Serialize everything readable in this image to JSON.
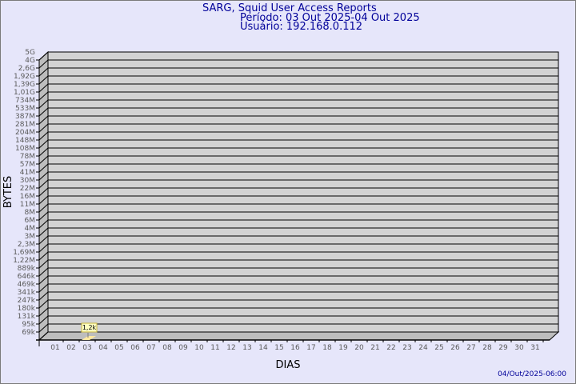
{
  "header": {
    "title": "SARG, Squid User Access Reports",
    "period": "Período: 03 Out 2025-04 Out 2025",
    "user": "Usuário: 192.168.0.112"
  },
  "footer": {
    "timestamp": "04/Out/2025-06:00"
  },
  "colors": {
    "background": "#e6e6fa",
    "plot": "#d3d3d3",
    "bar": "#ffe8a0",
    "text": "#000099"
  },
  "chart_data": {
    "type": "bar",
    "title": "SARG, Squid User Access Reports",
    "xlabel": "DIAS",
    "ylabel": "BYTES",
    "y_scale": "log",
    "grid": true,
    "categories": [
      "01",
      "02",
      "03",
      "04",
      "05",
      "06",
      "07",
      "08",
      "09",
      "10",
      "11",
      "12",
      "13",
      "14",
      "15",
      "16",
      "17",
      "18",
      "19",
      "20",
      "21",
      "22",
      "23",
      "24",
      "25",
      "26",
      "27",
      "28",
      "29",
      "30",
      "31"
    ],
    "y_ticks": [
      "5G",
      "4G",
      "2,6G",
      "1,92G",
      "1,39G",
      "1,01G",
      "734M",
      "533M",
      "387M",
      "281M",
      "204M",
      "148M",
      "108M",
      "78M",
      "57M",
      "41M",
      "30M",
      "22M",
      "16M",
      "11M",
      "8M",
      "6M",
      "4M",
      "3M",
      "2,3M",
      "1,69M",
      "1,22M",
      "889k",
      "646k",
      "469k",
      "341k",
      "247k",
      "180k",
      "131k",
      "95k",
      "69k"
    ],
    "series": [
      {
        "points": [
          {
            "x": "03",
            "y": 1200,
            "label": "1,2k"
          }
        ]
      }
    ]
  }
}
